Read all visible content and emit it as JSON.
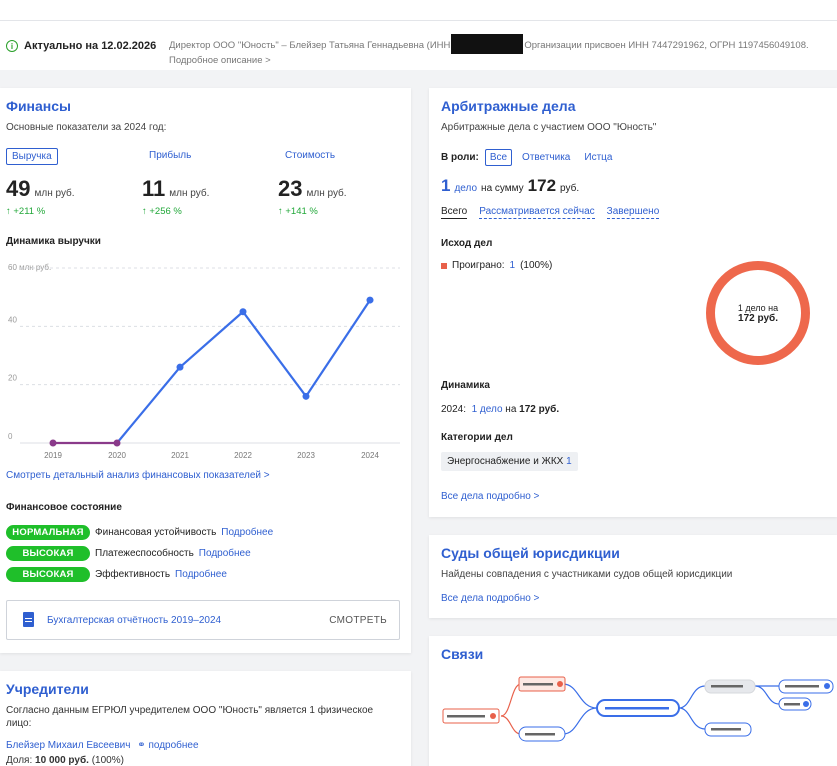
{
  "header": {
    "actual_label": "Актуально на 12.02.2026",
    "director_text_1": "Директор ООО \"Юность\" – Блейзер Татьяна Геннадьевна (ИНН",
    "director_text_2": "Организации присвоен ИНН 7447291962, ОГРН 1197456049108.",
    "more_label": "Подробное описание >"
  },
  "finance": {
    "title": "Финансы",
    "subtitle": "Основные показатели за 2024 год:",
    "tabs": [
      "Выручка",
      "Прибыль",
      "Стоимость"
    ],
    "metrics": [
      {
        "value": "49",
        "unit": "млн руб.",
        "change": "↑ +211 %"
      },
      {
        "value": "11",
        "unit": "млн руб.",
        "change": "↑ +256 %"
      },
      {
        "value": "23",
        "unit": "млн руб.",
        "change": "↑ +141 %"
      }
    ],
    "dynamics_title": "Динамика выручки",
    "analysis_link": "Смотреть детальный анализ финансовых показателей  >",
    "state_title": "Финансовое состояние",
    "states": [
      {
        "badge": "НОРМАЛЬНАЯ",
        "label": "Финансовая устойчивость",
        "link": "Подробнее"
      },
      {
        "badge": "ВЫСОКАЯ",
        "label": "Платежеспособность",
        "link": "Подробнее"
      },
      {
        "badge": "ВЫСОКАЯ",
        "label": "Эффективность",
        "link": "Подробнее"
      }
    ],
    "report_label": "Бухгалтерская отчётность 2019–2024",
    "report_button": "СМОТРЕТЬ"
  },
  "chart_data": {
    "type": "line",
    "title": "Динамика выручки",
    "ylabel_top": "60 млн руб.",
    "categories": [
      "2019",
      "2020",
      "2021",
      "2022",
      "2023",
      "2024"
    ],
    "values": [
      0,
      0,
      26,
      45,
      16,
      49
    ],
    "yticks": [
      "0",
      "20",
      "40"
    ],
    "ylim": [
      0,
      60
    ],
    "grid": true,
    "colors": {
      "line": "#3a6ee8",
      "zero_segment": "#8a3a8a"
    }
  },
  "founders": {
    "title": "Учредители",
    "desc": "Согласно данным ЕГРЮЛ учредителем ООО \"Юность\" является 1 физическое лицо:",
    "person": "Блейзер Михаил Евсеевич",
    "person_link": "подробнее",
    "share_label": "Доля:",
    "share_value": "10 000 руб.",
    "share_pct": "(100%)"
  },
  "arbitration": {
    "title": "Арбитражные дела",
    "subtitle": "Арбитражные дела с участием ООО \"Юность\"",
    "role_label": "В роли:",
    "roles": [
      "Все",
      "Ответчика",
      "Истца"
    ],
    "count": "1",
    "count_word": "дело",
    "sum_prefix": "на сумму",
    "sum": "172",
    "sum_unit": "руб.",
    "filters": [
      "Всего",
      "Рассматривается сейчас",
      "Завершено"
    ],
    "outcome_title": "Исход дел",
    "outcome_label": "Проиграно:",
    "outcome_count": "1",
    "outcome_pct": "(100%)",
    "donut_line1": "1 дело на",
    "donut_line2": "172 руб.",
    "dynamics_title": "Динамика",
    "dyn_year": "2024:",
    "dyn_cases": "1 дело",
    "dyn_on": "на",
    "dyn_sum": "172 руб.",
    "categories_title": "Категории дел",
    "category": "Энергоснабжение и ЖКХ",
    "category_count": "1",
    "all_link": "Все дела подробно  >"
  },
  "courts": {
    "title": "Суды общей юрисдикции",
    "subtitle": "Найдены совпадения с участниками судов общей юрисдикции",
    "all_link": "Все дела подробно  >"
  },
  "connections": {
    "title": "Связи"
  }
}
